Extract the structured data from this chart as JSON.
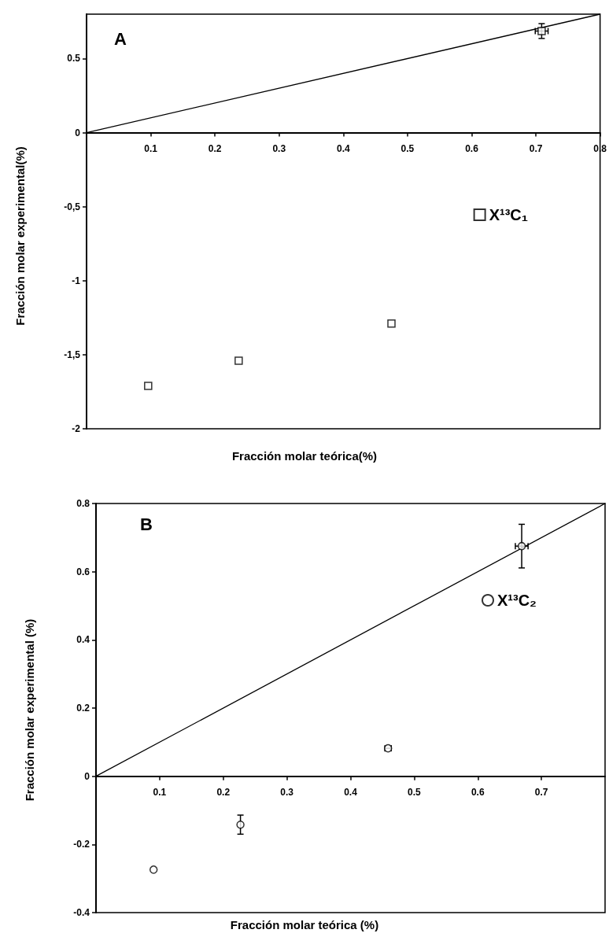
{
  "chart_data": [
    {
      "type": "scatter",
      "xlabel": "Fracción molar teórica(%)",
      "ylabel": "Fracción molar experimental(%)",
      "annotations": [
        "A"
      ],
      "xlim": [
        0,
        0.8
      ],
      "ylim": [
        -2,
        0.8
      ],
      "xticks": [
        0.1,
        0.2,
        0.3,
        0.4,
        0.5,
        0.6,
        0.7,
        0.8
      ],
      "yticks": [
        -2,
        {
          "value": -1.5,
          "label": "-1,5"
        },
        -1,
        {
          "value": -0.5,
          "label": "-0,5"
        },
        0,
        0.5
      ],
      "legend": "right",
      "series": [
        {
          "type": "line",
          "marker": "none",
          "color": "#000000",
          "x": [
            0,
            0.8
          ],
          "values": [
            0,
            0.8
          ]
        },
        {
          "name": "X¹³C₁",
          "marker": "square",
          "color": "#000000",
          "x": [
            0.096,
            0.237,
            0.475,
            0.709
          ],
          "values": [
            -1.71,
            -1.54,
            -1.29,
            0.686
          ],
          "errors": [
            null,
            null,
            null,
            0.05
          ],
          "xerrors": [
            null,
            null,
            null,
            0.01
          ]
        }
      ]
    },
    {
      "type": "scatter",
      "xlabel": "Fracción molar teórica (%)",
      "ylabel": "Fracción molar experimental (%)",
      "annotations": [
        "B"
      ],
      "xlim": [
        0,
        0.8
      ],
      "ylim": [
        -0.4,
        0.8
      ],
      "xticks": [
        0.1,
        0.2,
        0.3,
        0.4,
        0.5,
        0.6,
        0.7
      ],
      "yticks": [
        -0.4,
        -0.2,
        0,
        0.2,
        0.4,
        0.6,
        0.8
      ],
      "legend": "right",
      "series": [
        {
          "type": "line",
          "marker": "none",
          "color": "#000000",
          "x": [
            0,
            0.8
          ],
          "values": [
            0,
            0.8
          ]
        },
        {
          "name": "X¹³C₂",
          "marker": "circle",
          "color": "#000000",
          "x": [
            0.0905,
            0.227,
            0.459,
            0.669
          ],
          "values": [
            -0.274,
            -0.142,
            0.082,
            0.675
          ],
          "errors": [
            null,
            0.028,
            null,
            0.064
          ],
          "xerrors": [
            null,
            null,
            0.005,
            0.01
          ]
        }
      ]
    }
  ]
}
